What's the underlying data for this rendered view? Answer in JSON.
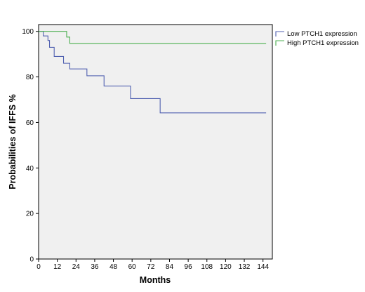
{
  "chart_data": {
    "type": "line",
    "step": true,
    "xlabel": "Months",
    "ylabel": "Probabilities of IFFS %",
    "xlim": [
      0,
      150
    ],
    "ylim": [
      0,
      103
    ],
    "x_ticks": [
      0,
      12,
      24,
      36,
      48,
      60,
      72,
      84,
      96,
      108,
      120,
      132,
      144
    ],
    "y_ticks": [
      0,
      20,
      40,
      60,
      80,
      100
    ],
    "grid": false,
    "plot_background": "#f0f0f0",
    "legend_position": "top-right, outside plot",
    "series": [
      {
        "name": "Low PTCH1 expression",
        "color": "#5060b0",
        "points": [
          [
            0,
            100
          ],
          [
            3,
            98
          ],
          [
            6,
            96
          ],
          [
            7,
            93
          ],
          [
            10,
            89
          ],
          [
            16,
            86
          ],
          [
            20,
            83.5
          ],
          [
            31,
            80.5
          ],
          [
            42,
            76
          ],
          [
            59,
            70.5
          ],
          [
            78,
            64.2
          ],
          [
            146,
            64.2
          ]
        ]
      },
      {
        "name": "High PTCH1 expression",
        "color": "#4caf50",
        "points": [
          [
            0,
            100
          ],
          [
            18,
            97.5
          ],
          [
            20,
            94.7
          ],
          [
            146,
            94.7
          ]
        ]
      }
    ]
  }
}
